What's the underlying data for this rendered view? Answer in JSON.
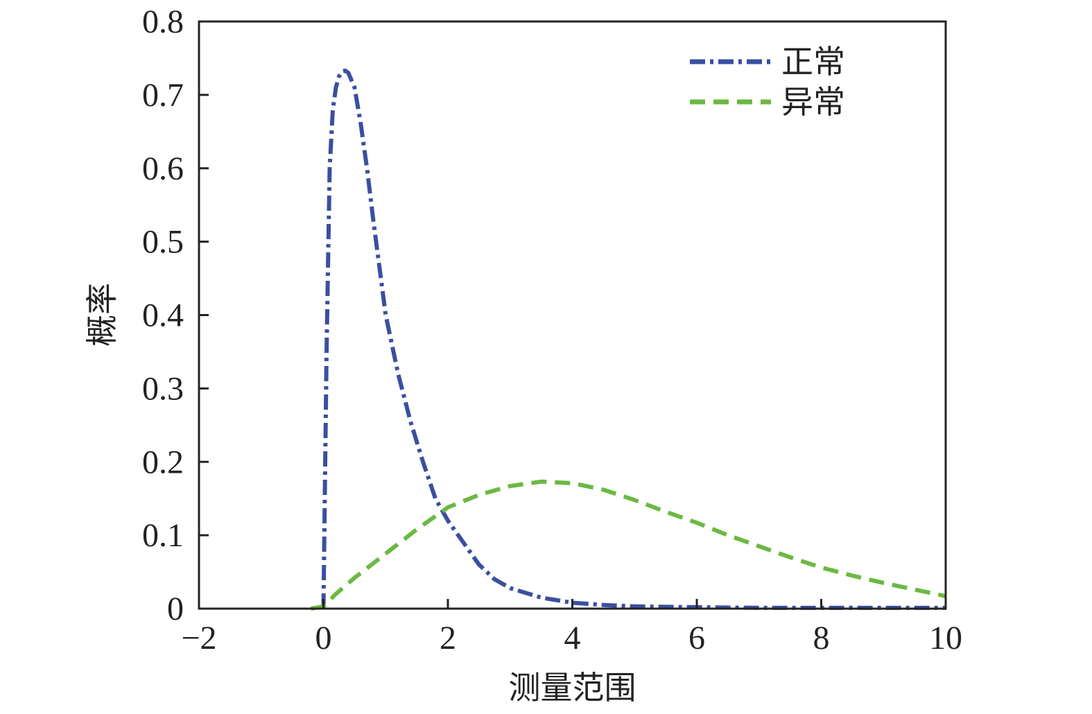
{
  "chart_data": {
    "type": "line",
    "title": "",
    "xlabel": "测量范围",
    "ylabel": "概率",
    "xlim": [
      -2,
      10
    ],
    "ylim": [
      0,
      0.8
    ],
    "x_ticks": [
      -2,
      0,
      2,
      4,
      6,
      8,
      10
    ],
    "x_tick_labels": [
      "−2",
      "0",
      "2",
      "4",
      "6",
      "8",
      "10"
    ],
    "y_ticks": [
      0,
      0.1,
      0.2,
      0.3,
      0.4,
      0.5,
      0.6,
      0.7,
      0.8
    ],
    "y_tick_labels": [
      "0",
      "0.1",
      "0.2",
      "0.3",
      "0.4",
      "0.5",
      "0.6",
      "0.7",
      "0.8"
    ],
    "grid": false,
    "legend_position": "top-right",
    "series": [
      {
        "name": "正常",
        "color": "#3a4fa0",
        "style": "dash-dot",
        "x": [
          0.0,
          0.05,
          0.1,
          0.15,
          0.2,
          0.25,
          0.3,
          0.35,
          0.4,
          0.5,
          0.6,
          0.7,
          0.8,
          0.9,
          1.0,
          1.2,
          1.4,
          1.6,
          1.8,
          2.0,
          2.25,
          2.5,
          2.75,
          3.0,
          3.5,
          4.0,
          4.5,
          5.0,
          6.0,
          7.0,
          8.0,
          9.0,
          10.0
        ],
        "y": [
          0.0,
          0.35,
          0.6,
          0.68,
          0.71,
          0.725,
          0.732,
          0.733,
          0.73,
          0.71,
          0.66,
          0.6,
          0.53,
          0.465,
          0.4,
          0.32,
          0.255,
          0.2,
          0.15,
          0.12,
          0.09,
          0.06,
          0.04,
          0.028,
          0.015,
          0.008,
          0.005,
          0.003,
          0.002,
          0.001,
          0.001,
          0.001,
          0.001
        ]
      },
      {
        "name": "异常",
        "color": "#6bb843",
        "style": "dashed",
        "x": [
          -0.2,
          0.0,
          0.2,
          0.5,
          1.0,
          1.5,
          2.0,
          2.5,
          3.0,
          3.5,
          4.0,
          4.5,
          5.0,
          5.5,
          6.0,
          6.5,
          7.0,
          7.5,
          8.0,
          8.5,
          9.0,
          9.5,
          10.0
        ],
        "y": [
          0.0,
          0.003,
          0.02,
          0.042,
          0.075,
          0.108,
          0.138,
          0.155,
          0.167,
          0.173,
          0.171,
          0.162,
          0.148,
          0.132,
          0.117,
          0.1,
          0.085,
          0.07,
          0.056,
          0.045,
          0.035,
          0.026,
          0.017
        ]
      }
    ]
  }
}
